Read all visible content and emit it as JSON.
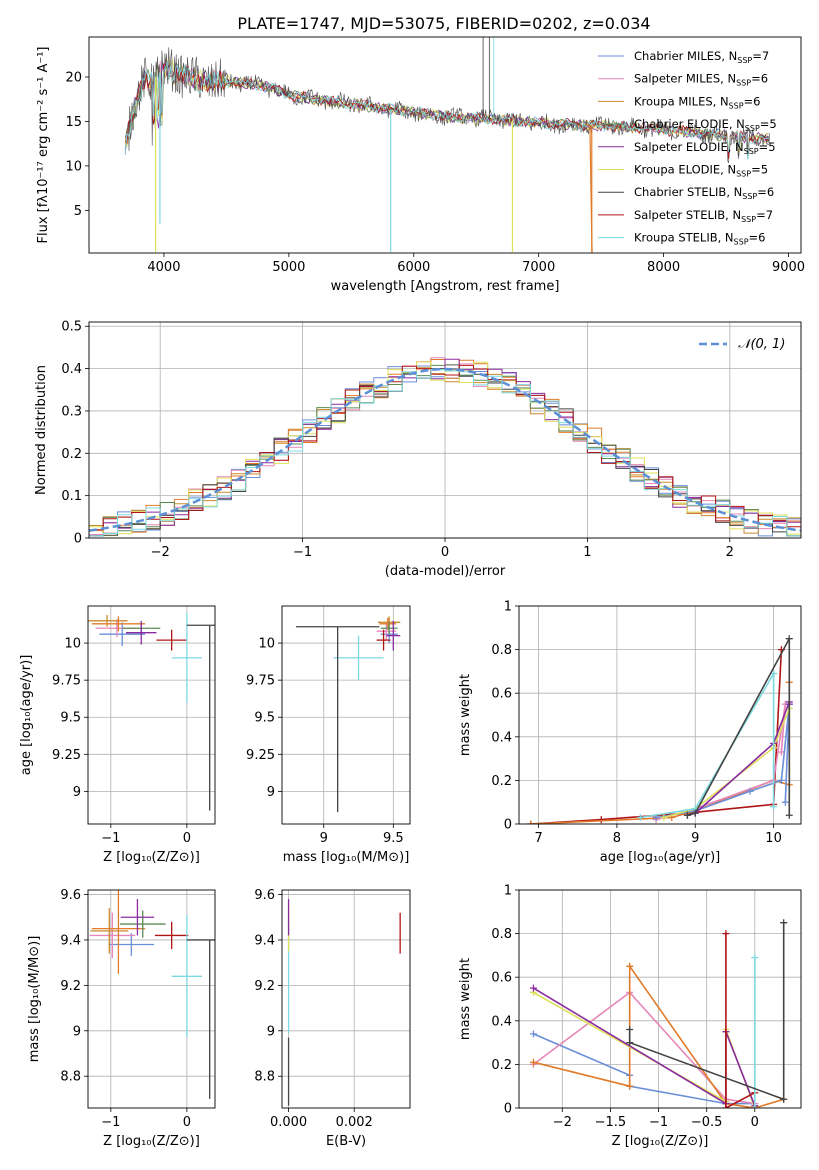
{
  "title": "PLATE=1747, MJD=53075, FIBERID=0202, z=0.034",
  "colors": {
    "c1": "#6a8fd8",
    "c2": "#e687b8",
    "c3": "#cc8a2e",
    "c4": "#5d8a55",
    "c5": "#8b2ba0",
    "c6": "#dde05a",
    "c7": "#444444",
    "c8": "#b01515",
    "c9": "#7dd9e0",
    "orange": "#e07b2a",
    "gauss": "#5b8fd6"
  },
  "chart_data": [
    {
      "type": "line",
      "panel": "spectrum",
      "xlabel": "wavelength [Angstrom, rest frame]",
      "ylabel": "Flux [fλ10⁻¹⁷ erg cm⁻² s⁻¹ A⁻¹]",
      "xlim": [
        3400,
        9100
      ],
      "ylim": [
        0.2,
        24.5
      ],
      "xticks": [
        4000,
        5000,
        6000,
        7000,
        8000,
        9000
      ],
      "yticks": [
        5,
        10,
        15,
        20
      ],
      "legend_placement": "upper-right",
      "series": [
        {
          "name": "Chabrier MILES, N",
          "nssp": "=7",
          "color_key": "c1"
        },
        {
          "name": "Salpeter MILES, N",
          "nssp": "=6",
          "color_key": "c2"
        },
        {
          "name": "Kroupa MILES, N",
          "nssp": "=6",
          "color_key": "c3"
        },
        {
          "name": "Chabrier ELODIE, N",
          "nssp": "=5",
          "color_key": "c4"
        },
        {
          "name": "Salpeter ELODIE, N",
          "nssp": "=5",
          "color_key": "c5"
        },
        {
          "name": "Kroupa ELODIE, N",
          "nssp": "=5",
          "color_key": "c6"
        },
        {
          "name": "Chabrier STELIB, N",
          "nssp": "=6",
          "color_key": "c7"
        },
        {
          "name": "Salpeter STELIB, N",
          "nssp": "=7",
          "color_key": "c8"
        },
        {
          "name": "Kroupa STELIB, N",
          "nssp": "=6",
          "color_key": "c9"
        }
      ],
      "continuum_x": [
        3690,
        3750,
        3800,
        3850,
        3900,
        4000,
        4100,
        4300,
        4500,
        4800,
        5000,
        5300,
        5600,
        6000,
        6300,
        6600,
        7000,
        7400,
        7800,
        8200,
        8600,
        8850
      ],
      "continuum_y": [
        12,
        16,
        18,
        20,
        19.5,
        21,
        20.5,
        19.5,
        19.5,
        19,
        18,
        17.3,
        16.8,
        16,
        15.5,
        15.3,
        14.8,
        14.6,
        14.3,
        13.8,
        13.3,
        13
      ],
      "dips": [
        {
          "x": 3933,
          "y": 0.3,
          "color_key": "c6"
        },
        {
          "x": 3968,
          "y": 3.5,
          "color_key": "c9"
        },
        {
          "x": 5815,
          "y": 0.3,
          "color_key": "c9"
        },
        {
          "x": 6790,
          "y": 0.3,
          "color_key": "c6"
        },
        {
          "x": 7425,
          "y": 0.3,
          "color_key": "orange"
        }
      ],
      "spikes": [
        {
          "x": 6555,
          "y": 24.5,
          "color_key": "c7"
        },
        {
          "x": 6605,
          "y": 24.5,
          "color_key": "c7"
        },
        {
          "x": 6640,
          "y": 24.5,
          "color_key": "c9"
        }
      ]
    },
    {
      "type": "area",
      "panel": "residuals",
      "xlabel": "(data-model)/error",
      "ylabel": "Normed distribution",
      "xlim": [
        -2.5,
        2.5
      ],
      "ylim": [
        0,
        0.51
      ],
      "xticks": [
        -2,
        -1,
        0,
        1,
        2
      ],
      "yticks": [
        0.0,
        0.1,
        0.2,
        0.3,
        0.4,
        0.5
      ],
      "legend": "𝒩(0, 1)",
      "legend_placement": "upper-right",
      "bin_width": 0.1
    },
    {
      "type": "scatter",
      "panel": "age-vs-Z",
      "xlabel": "Z [log₁₀(Z/Z⊙)]",
      "ylabel": "age  [log₁₀(age/yr)]",
      "xlim": [
        -1.3,
        0.37
      ],
      "ylim": [
        8.78,
        10.25
      ],
      "xticks": [
        -1,
        0
      ],
      "yticks": [
        9.0,
        9.25,
        9.5,
        9.75,
        10.0
      ],
      "points": [
        {
          "color_key": "c1",
          "x": -0.85,
          "xerr": 0.3,
          "y": 10.06,
          "yerr": 0.08
        },
        {
          "color_key": "c2",
          "x": -0.92,
          "xerr": 0.28,
          "y": 10.1,
          "yerr": 0.06
        },
        {
          "color_key": "c3",
          "x": -1.05,
          "xerr": 0.27,
          "y": 10.15,
          "yerr": 0.04
        },
        {
          "color_key": "orange",
          "x": -0.9,
          "xerr": 0.35,
          "y": 10.13,
          "yerr": 0.05
        },
        {
          "color_key": "c4",
          "x": -0.6,
          "xerr": 0.25,
          "y": 10.1,
          "yerr": 0.04
        },
        {
          "color_key": "c5",
          "x": -0.6,
          "xerr": 0.2,
          "y": 10.07,
          "yerr": 0.08
        },
        {
          "color_key": "c8",
          "x": -0.2,
          "xerr": 0.2,
          "y": 10.02,
          "yerr": 0.07
        },
        {
          "color_key": "c9",
          "x": 0.0,
          "xerr": 0.2,
          "y": 9.9,
          "yerr": 0.3
        },
        {
          "color_key": "c7",
          "x": 0.3,
          "xerr": 0.3,
          "y": 10.12,
          "yerr_low": 1.25,
          "yerr_high": 0.0
        }
      ]
    },
    {
      "type": "scatter",
      "panel": "age-vs-mass",
      "xlabel": "mass [log₁₀(M/M⊙)]",
      "ylabel": "",
      "xlim": [
        8.7,
        9.62
      ],
      "ylim": [
        8.78,
        10.25
      ],
      "xticks": [
        9.0,
        9.5
      ],
      "yticks": [
        9.0,
        9.25,
        9.5,
        9.75,
        10.0
      ],
      "points": [
        {
          "color_key": "c9",
          "x": 9.25,
          "xerr": 0.18,
          "y": 9.9,
          "yerr": 0.15
        },
        {
          "color_key": "c7",
          "x": 9.1,
          "xerr_low": 0.3,
          "xerr_high": 0.3,
          "y": 10.11,
          "yerr_low": 1.25,
          "yerr_high": 0
        },
        {
          "color_key": "c1",
          "x": 9.47,
          "xerr": 0.06,
          "y": 10.06,
          "yerr": 0.06
        },
        {
          "color_key": "c2",
          "x": 9.45,
          "xerr": 0.07,
          "y": 10.08,
          "yerr": 0.06
        },
        {
          "color_key": "c3",
          "x": 9.47,
          "xerr": 0.08,
          "y": 10.14,
          "yerr": 0.04
        },
        {
          "color_key": "orange",
          "x": 9.46,
          "xerr": 0.06,
          "y": 10.13,
          "yerr": 0.04
        },
        {
          "color_key": "c4",
          "x": 9.47,
          "xerr": 0.06,
          "y": 10.1,
          "yerr": 0.04
        },
        {
          "color_key": "c5",
          "x": 9.5,
          "xerr": 0.05,
          "y": 10.05,
          "yerr": 0.1
        },
        {
          "color_key": "c8",
          "x": 9.43,
          "xerr": 0.05,
          "y": 10.02,
          "yerr": 0.07
        }
      ]
    },
    {
      "type": "line",
      "panel": "mass-weight-vs-age",
      "xlabel": "age  [log₁₀(age/yr)]",
      "ylabel": "mass weight",
      "xlim": [
        6.75,
        10.35
      ],
      "ylim": [
        0,
        1.0
      ],
      "xticks": [
        7,
        8,
        9,
        10
      ],
      "yticks": [
        0.0,
        0.2,
        0.4,
        0.6,
        0.8,
        1.0
      ],
      "series": [
        {
          "color_key": "c8",
          "x": [
            6.9,
            7.8,
            8.9,
            10.0,
            10.1
          ],
          "y": [
            0.0,
            0.02,
            0.05,
            0.09,
            0.8
          ]
        },
        {
          "color_key": "orange",
          "x": [
            6.9,
            8.7,
            9.0,
            10.0,
            10.2,
            10.2
          ],
          "y": [
            0.0,
            0.03,
            0.06,
            0.2,
            0.18,
            0.65
          ]
        },
        {
          "color_key": "c2",
          "x": [
            8.5,
            9.0,
            10.0,
            10.15,
            10.1
          ],
          "y": [
            0.02,
            0.07,
            0.2,
            0.55,
            0.33
          ]
        },
        {
          "color_key": "c1",
          "x": [
            8.5,
            9.0,
            9.7,
            10.1,
            10.2,
            10.15
          ],
          "y": [
            0.03,
            0.06,
            0.15,
            0.2,
            0.55,
            0.1
          ]
        },
        {
          "color_key": "c6",
          "x": [
            8.6,
            9.0,
            10.0,
            10.2
          ],
          "y": [
            0.03,
            0.07,
            0.35,
            0.53
          ]
        },
        {
          "color_key": "c5",
          "x": [
            8.9,
            9.0,
            10.0,
            10.2,
            10.2
          ],
          "y": [
            0.04,
            0.05,
            0.37,
            0.56,
            0.55
          ]
        },
        {
          "color_key": "c9",
          "x": [
            8.3,
            9.0,
            10.0,
            10.0
          ],
          "y": [
            0.03,
            0.07,
            0.69,
            0.08
          ]
        },
        {
          "color_key": "c7",
          "x": [
            8.9,
            9.0,
            10.2,
            10.2
          ],
          "y": [
            0.04,
            0.05,
            0.85,
            0.04
          ]
        }
      ]
    },
    {
      "type": "scatter",
      "panel": "mass-vs-Z",
      "xlabel": "Z [log₁₀(Z/Z⊙)]",
      "ylabel": "mass [log₁₀(M/M⊙)]",
      "xlim": [
        -1.3,
        0.37
      ],
      "ylim": [
        8.66,
        9.62
      ],
      "xticks": [
        -1,
        0
      ],
      "yticks": [
        8.8,
        9.0,
        9.2,
        9.4,
        9.6
      ],
      "points": [
        {
          "color_key": "c1",
          "x": -0.73,
          "xerr": 0.3,
          "y": 9.38,
          "yerr": 0.05
        },
        {
          "color_key": "c2",
          "x": -0.98,
          "xerr": 0.3,
          "y": 9.42,
          "yerr": 0.1
        },
        {
          "color_key": "c3",
          "x": -1.02,
          "xerr": 0.25,
          "y": 9.44,
          "yerr": 0.1
        },
        {
          "color_key": "orange",
          "x": -0.9,
          "xerr": 0.35,
          "y": 9.45,
          "yerr": 0.2
        },
        {
          "color_key": "c4",
          "x": -0.58,
          "xerr": 0.3,
          "y": 9.47,
          "yerr": 0.06
        },
        {
          "color_key": "c5",
          "x": -0.65,
          "xerr": 0.22,
          "y": 9.5,
          "yerr": 0.08
        },
        {
          "color_key": "c8",
          "x": -0.2,
          "xerr": 0.22,
          "y": 9.42,
          "yerr": 0.06
        },
        {
          "color_key": "c9",
          "x": 0.0,
          "xerr": 0.2,
          "y": 9.24,
          "yerr": 0.27
        },
        {
          "color_key": "c7",
          "x": 0.3,
          "xerr": 0.3,
          "y": 9.4,
          "yerr_low": 0.7,
          "yerr_high": 0.0
        }
      ]
    },
    {
      "type": "scatter",
      "panel": "mass-vs-EBV",
      "xlabel": "E(B-V)",
      "ylabel": "",
      "xlim": [
        -0.0002,
        0.0037
      ],
      "ylim": [
        8.66,
        9.62
      ],
      "xticks": [
        0.0,
        0.002
      ],
      "xtick_labels": [
        "0.000",
        "0.002"
      ],
      "yticks": [
        8.8,
        9.0,
        9.2,
        9.4,
        9.6
      ],
      "points": [
        {
          "color_key": "c7",
          "x": 0.0,
          "y": 8.82,
          "yerr": 0.15
        },
        {
          "color_key": "c9",
          "x": 0.0,
          "y": 9.24,
          "yerr": 0.25
        },
        {
          "color_key": "c6",
          "x": 0.0,
          "y": 9.45,
          "yerr": 0.1
        },
        {
          "color_key": "c5",
          "x": 0.0,
          "y": 9.5,
          "yerr": 0.08
        },
        {
          "color_key": "c8",
          "x": 0.0034,
          "y": 9.43,
          "yerr": 0.09
        }
      ]
    },
    {
      "type": "line",
      "panel": "mass-weight-vs-Z",
      "xlabel": "Z [log₁₀(Z/Z⊙)]",
      "ylabel": "mass weight",
      "xlim": [
        -2.45,
        0.48
      ],
      "ylim": [
        0,
        1.0
      ],
      "xticks": [
        -2.0,
        -1.5,
        -1.0,
        -0.5,
        0.0
      ],
      "yticks": [
        0.0,
        0.2,
        0.4,
        0.6,
        0.8,
        1.0
      ],
      "series": [
        {
          "color_key": "c1",
          "x": [
            -2.3,
            -1.3,
            -1.3,
            -0.3,
            0.0
          ],
          "y": [
            0.34,
            0.15,
            0.1,
            0.02,
            0.02
          ]
        },
        {
          "color_key": "c2",
          "x": [
            -2.3,
            -1.3,
            -0.3,
            0.0
          ],
          "y": [
            0.2,
            0.53,
            0.04,
            0.02
          ]
        },
        {
          "color_key": "orange",
          "x": [
            -2.3,
            -1.3,
            -1.3,
            -0.3,
            0.0,
            0.3
          ],
          "y": [
            0.21,
            0.1,
            0.65,
            0.02,
            0.0,
            0.04
          ]
        },
        {
          "color_key": "c6",
          "x": [
            -2.3,
            -0.3,
            -0.3,
            0.0
          ],
          "y": [
            0.53,
            0.03,
            0.36,
            0.0
          ]
        },
        {
          "color_key": "c5",
          "x": [
            -2.3,
            -0.3,
            -0.3,
            0.0
          ],
          "y": [
            0.55,
            0.02,
            0.35,
            0.01
          ]
        },
        {
          "color_key": "c8",
          "x": [
            -0.3,
            -0.3,
            0.0
          ],
          "y": [
            0.8,
            0.0,
            0.07
          ]
        },
        {
          "color_key": "c9",
          "x": [
            0.0,
            0.0
          ],
          "y": [
            0.69,
            0.0
          ]
        },
        {
          "color_key": "c7",
          "x": [
            -1.3,
            -1.3,
            0.3,
            0.3
          ],
          "y": [
            0.36,
            0.3,
            0.04,
            0.85
          ]
        }
      ]
    }
  ]
}
